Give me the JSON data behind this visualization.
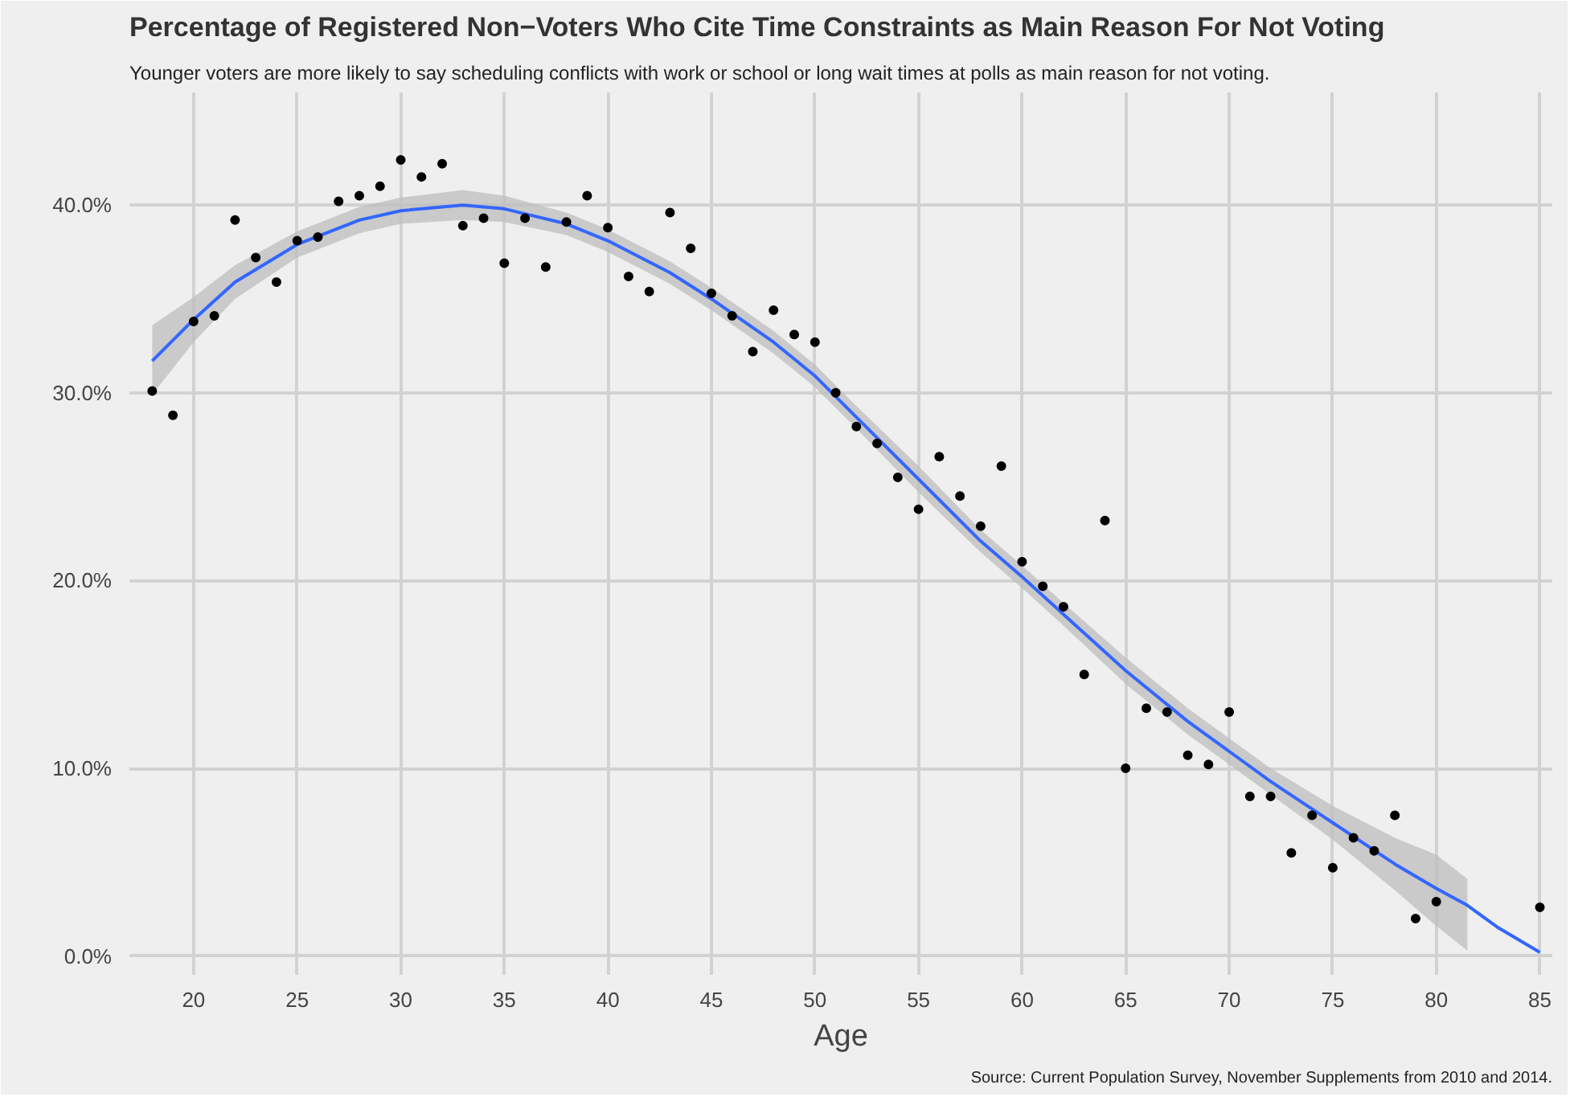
{
  "chart_data": {
    "type": "scatter",
    "title": "Percentage of Registered Non−Voters Who Cite Time Constraints as Main Reason For Not Voting",
    "subtitle": "Younger voters are more likely to say scheduling conflicts with work or school or long wait times at polls as main reason for not voting.",
    "xlabel": "Age",
    "annotations": [
      "Source: Current Population Survey, November Supplements from 2010 and 2014."
    ],
    "x": [
      18,
      19,
      20,
      21,
      22,
      23,
      24,
      25,
      26,
      27,
      28,
      29,
      30,
      31,
      32,
      33,
      34,
      35,
      36,
      37,
      38,
      39,
      40,
      41,
      42,
      43,
      44,
      45,
      46,
      47,
      48,
      49,
      50,
      51,
      52,
      53,
      54,
      55,
      56,
      57,
      58,
      59,
      60,
      61,
      62,
      63,
      64,
      65,
      66,
      67,
      68,
      69,
      70,
      71,
      72,
      73,
      74,
      75,
      76,
      77,
      78,
      79,
      80,
      85
    ],
    "series": [
      {
        "color": "#000000",
        "marker": "circle",
        "values": [
          30.1,
          28.8,
          33.8,
          34.1,
          39.2,
          37.2,
          35.9,
          38.1,
          38.3,
          40.2,
          40.5,
          41.0,
          42.4,
          41.5,
          42.2,
          38.9,
          39.3,
          36.9,
          39.3,
          36.7,
          39.1,
          40.5,
          38.8,
          36.2,
          35.4,
          39.6,
          37.7,
          35.3,
          34.1,
          32.2,
          34.4,
          33.1,
          32.7,
          30.0,
          28.2,
          27.3,
          25.5,
          23.8,
          26.6,
          24.5,
          22.9,
          26.1,
          21.0,
          19.7,
          18.6,
          15.0,
          23.2,
          10.0,
          13.2,
          13.0,
          10.7,
          10.2,
          13.0,
          8.5,
          8.5,
          5.5,
          7.5,
          4.7,
          6.3,
          5.6,
          7.5,
          2.0,
          2.9,
          2.6
        ]
      },
      {
        "type": "line",
        "color": "#3366ff",
        "x": [
          18,
          20,
          22,
          25,
          28,
          30,
          33,
          35,
          38,
          40,
          43,
          45,
          48,
          50,
          52,
          55,
          58,
          60,
          62,
          65,
          68,
          70,
          72,
          75,
          78,
          80,
          81.5,
          83,
          85
        ],
        "values": [
          31.7,
          33.9,
          35.9,
          37.9,
          39.2,
          39.7,
          40.0,
          39.8,
          39.0,
          38.1,
          36.4,
          35.0,
          32.7,
          30.9,
          28.7,
          25.4,
          22.1,
          20.2,
          18.2,
          15.2,
          12.5,
          10.9,
          9.3,
          7.1,
          4.9,
          3.6,
          2.7,
          1.5,
          0.2
        ],
        "lower": [
          29.9,
          32.7,
          35.0,
          37.2,
          38.5,
          39.0,
          39.2,
          39.1,
          38.4,
          37.5,
          35.8,
          34.4,
          32.1,
          30.3,
          28.1,
          24.7,
          21.5,
          19.6,
          17.6,
          14.5,
          11.8,
          10.2,
          8.6,
          6.2,
          3.5,
          1.6,
          0.3,
          null,
          null
        ],
        "upper": [
          33.6,
          35.1,
          36.8,
          38.6,
          39.9,
          40.4,
          40.8,
          40.5,
          39.6,
          38.7,
          37.0,
          35.6,
          33.3,
          31.5,
          29.3,
          26.1,
          22.7,
          20.8,
          18.8,
          15.9,
          13.2,
          11.6,
          10.0,
          8.0,
          6.3,
          5.4,
          4.1,
          null,
          null
        ]
      }
    ],
    "grid": true,
    "xlim": [
      16.9,
      85.6
    ],
    "ylim": [
      -1,
      46
    ],
    "xticks": [
      20,
      25,
      30,
      35,
      40,
      45,
      50,
      55,
      60,
      65,
      70,
      75,
      80,
      85
    ],
    "yticks": [
      {
        "value": 0,
        "label": "0.0%"
      },
      {
        "value": 10,
        "label": "10.0%"
      },
      {
        "value": 20,
        "label": "20.0%"
      },
      {
        "value": 30,
        "label": "30.0%"
      },
      {
        "value": 40,
        "label": "40.0%"
      }
    ]
  }
}
